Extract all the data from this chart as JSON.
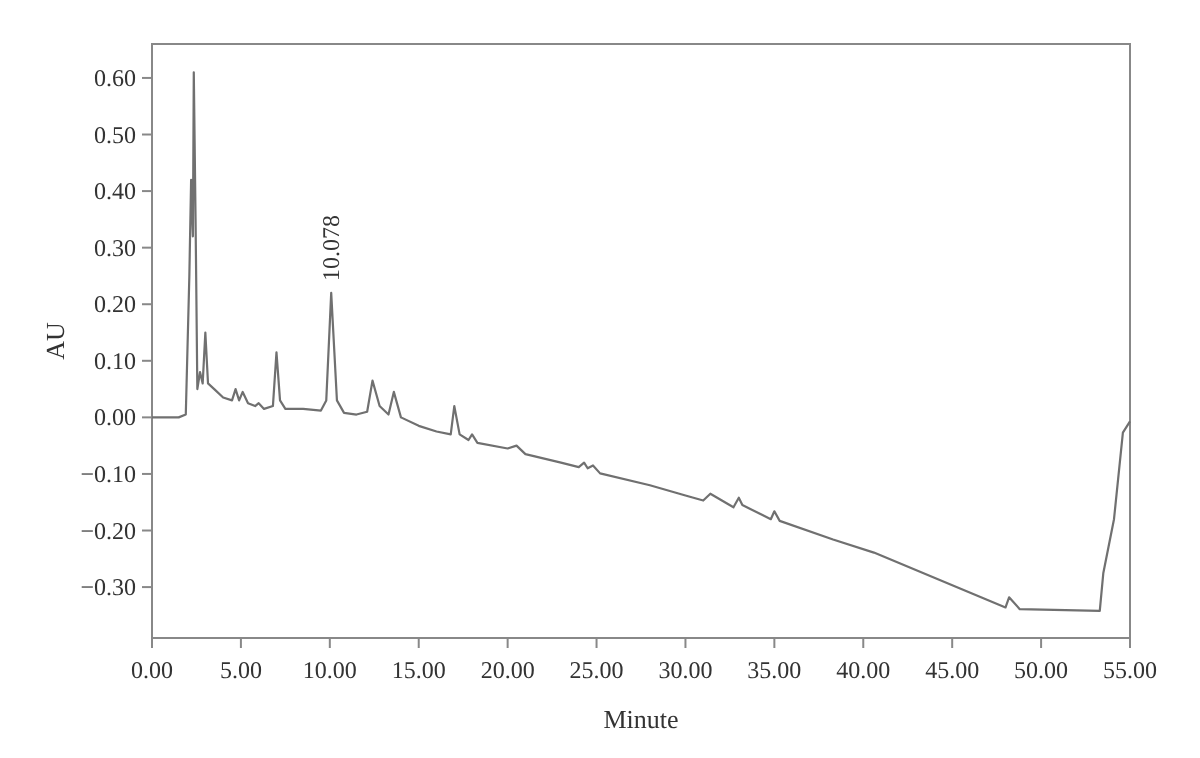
{
  "chart_data": {
    "type": "line",
    "xlabel": "Minute",
    "ylabel": "AU",
    "xlim": [
      0,
      55
    ],
    "ylim": [
      -0.39,
      0.66
    ],
    "xticks": [
      {
        "value": 0,
        "label": "0.00"
      },
      {
        "value": 5,
        "label": "5.00"
      },
      {
        "value": 10,
        "label": "10.00"
      },
      {
        "value": 15,
        "label": "15.00"
      },
      {
        "value": 20,
        "label": "20.00"
      },
      {
        "value": 25,
        "label": "25.00"
      },
      {
        "value": 30,
        "label": "30.00"
      },
      {
        "value": 35,
        "label": "35.00"
      },
      {
        "value": 40,
        "label": "40.00"
      },
      {
        "value": 45,
        "label": "45.00"
      },
      {
        "value": 50,
        "label": "50.00"
      },
      {
        "value": 55,
        "label": "55.00"
      }
    ],
    "yticks": [
      {
        "value": -0.3,
        "label": "−0.30"
      },
      {
        "value": -0.2,
        "label": "−0.20"
      },
      {
        "value": -0.1,
        "label": "−0.10"
      },
      {
        "value": 0,
        "label": "0.00"
      },
      {
        "value": 0.1,
        "label": "0.10"
      },
      {
        "value": 0.2,
        "label": "0.20"
      },
      {
        "value": 0.3,
        "label": "0.30"
      },
      {
        "value": 0.4,
        "label": "0.40"
      },
      {
        "value": 0.5,
        "label": "0.50"
      },
      {
        "value": 0.6,
        "label": "0.60"
      }
    ],
    "grid": false,
    "marker": "none",
    "line_style": "solid",
    "annotations": [
      {
        "text": "10.078",
        "x": 10.078,
        "y": 0.22
      }
    ],
    "series": [
      {
        "color": "#707070",
        "x": [
          0,
          1.5,
          1.9,
          2.1,
          2.2,
          2.3,
          2.35,
          2.45,
          2.55,
          2.7,
          2.85,
          3.0,
          3.15,
          3.5,
          4.0,
          4.5,
          4.7,
          4.9,
          5.1,
          5.4,
          5.8,
          6.0,
          6.3,
          6.8,
          7.0,
          7.2,
          7.5,
          8.5,
          9.5,
          9.8,
          10.078,
          10.4,
          10.8,
          11.5,
          12.1,
          12.4,
          12.8,
          13.3,
          13.6,
          14.0,
          15,
          16,
          16.8,
          17.0,
          17.3,
          17.8,
          18,
          18.3,
          20,
          20.5,
          21,
          23,
          24,
          24.3,
          24.5,
          24.8,
          25.2,
          28,
          30,
          31.0,
          31.4,
          32.7,
          33.0,
          33.2,
          34.8,
          35.0,
          35.3,
          38.3,
          40.6,
          48.0,
          48.2,
          48.8,
          53.3,
          53.5,
          54.1,
          54.6,
          55
        ],
        "values": [
          0,
          0,
          0.005,
          0.25,
          0.42,
          0.32,
          0.61,
          0.35,
          0.05,
          0.08,
          0.06,
          0.15,
          0.06,
          0.05,
          0.035,
          0.03,
          0.05,
          0.03,
          0.045,
          0.025,
          0.02,
          0.025,
          0.015,
          0.02,
          0.115,
          0.03,
          0.015,
          0.015,
          0.012,
          0.03,
          0.22,
          0.03,
          0.008,
          0.005,
          0.01,
          0.065,
          0.02,
          0.005,
          0.045,
          0,
          -0.015,
          -0.025,
          -0.03,
          0.02,
          -0.03,
          -0.04,
          -0.03,
          -0.045,
          -0.055,
          -0.05,
          -0.065,
          -0.08,
          -0.088,
          -0.08,
          -0.09,
          -0.085,
          -0.099,
          -0.12,
          -0.138,
          -0.147,
          -0.135,
          -0.159,
          -0.142,
          -0.155,
          -0.18,
          -0.166,
          -0.183,
          -0.216,
          -0.239,
          -0.336,
          -0.318,
          -0.339,
          -0.342,
          -0.275,
          -0.18,
          -0.027,
          -0.007
        ]
      }
    ]
  }
}
